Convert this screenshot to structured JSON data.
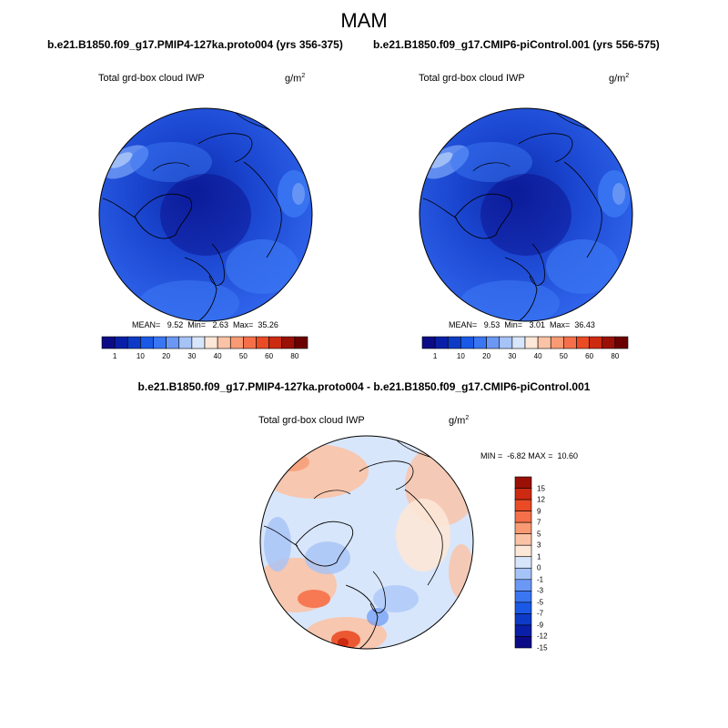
{
  "season": "MAM",
  "panels": [
    {
      "title": "b.e21.B1850.f09_g17.PMIP4-127ka.proto004 (yrs 356-375)",
      "variable": "Total grd-box cloud IWP",
      "units": "g/m",
      "units_sup": "2",
      "stats": "MEAN=   9.52  Min=   2.63  Max=  35.26"
    },
    {
      "title": "b.e21.B1850.f09_g17.CMIP6-piControl.001 (yrs 556-575)",
      "variable": "Total grd-box cloud IWP",
      "units": "g/m",
      "units_sup": "2",
      "stats": "MEAN=   9.53  Min=   3.01  Max=  36.43"
    }
  ],
  "diff_panel": {
    "title": "b.e21.B1850.f09_g17.PMIP4-127ka.proto004 - b.e21.B1850.f09_g17.CMIP6-piControl.001",
    "variable": "Total grd-box cloud IWP",
    "units": "g/m",
    "units_sup": "2",
    "stats": "MIN =  -6.82 MAX =  10.60"
  },
  "colorbar_abs": {
    "colors": [
      "#0c0b87",
      "#0a1fa8",
      "#0d3bc7",
      "#1a59e6",
      "#3a76f2",
      "#6c98f5",
      "#a6c3f8",
      "#d8e6fb",
      "#fde7d7",
      "#fbc3a6",
      "#f89a73",
      "#f5704a",
      "#ea4b25",
      "#cd2a12",
      "#9b1006",
      "#6b0000"
    ],
    "tick_labels": [
      "1",
      "10",
      "20",
      "30",
      "40",
      "50",
      "60",
      "80"
    ]
  },
  "colorbar_diff": {
    "colors": [
      "#0c0b87",
      "#0a1fa8",
      "#0d3bc7",
      "#1a59e6",
      "#3a76f2",
      "#6c98f5",
      "#a6c3f8",
      "#d8e6fb",
      "#fde7d7",
      "#fbc3a6",
      "#f89a73",
      "#f5704a",
      "#ea4b25",
      "#cd2a12",
      "#9b1006"
    ],
    "tick_labels": [
      "15",
      "12",
      "9",
      "7",
      "5",
      "3",
      "1",
      "0",
      "-1",
      "-3",
      "-5",
      "-7",
      "-9",
      "-12",
      "-15"
    ]
  }
}
